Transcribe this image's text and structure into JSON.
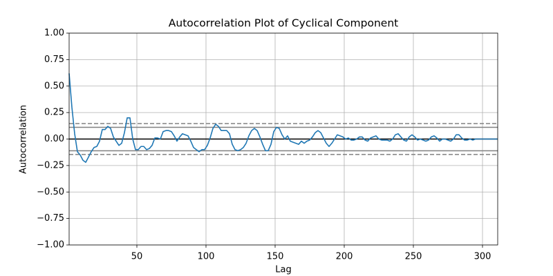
{
  "chart_data": {
    "type": "line",
    "title": "Autocorrelation Plot of Cyclical Component",
    "x_label": "Lag",
    "y_label": "Autocorrelation",
    "x": [
      1,
      3,
      5,
      7,
      9,
      11,
      13,
      15,
      17,
      19,
      21,
      23,
      25,
      27,
      29,
      31,
      33,
      35,
      37,
      39,
      41,
      43,
      45,
      47,
      49,
      51,
      53,
      55,
      57,
      59,
      61,
      63,
      65,
      67,
      69,
      71,
      73,
      75,
      77,
      79,
      81,
      83,
      85,
      87,
      89,
      91,
      93,
      95,
      97,
      99,
      101,
      103,
      105,
      107,
      109,
      111,
      113,
      115,
      117,
      119,
      121,
      123,
      125,
      127,
      129,
      131,
      133,
      135,
      137,
      139,
      141,
      143,
      145,
      147,
      149,
      151,
      153,
      155,
      157,
      159,
      161,
      163,
      165,
      167,
      169,
      171,
      173,
      175,
      177,
      179,
      181,
      183,
      185,
      187,
      189,
      191,
      193,
      195,
      197,
      199,
      201,
      203,
      205,
      207,
      209,
      211,
      213,
      215,
      217,
      219,
      221,
      223,
      225,
      227,
      229,
      231,
      233,
      235,
      237,
      239,
      241,
      243,
      245,
      247,
      249,
      251,
      253,
      255,
      257,
      259,
      261,
      263,
      265,
      267,
      269,
      271,
      273,
      275,
      277,
      279,
      281,
      283,
      285,
      287,
      289,
      291,
      293,
      295,
      297,
      299,
      301,
      303,
      305,
      307,
      309,
      311
    ],
    "series": [
      {
        "name": "Autocorrelation",
        "color": "#1f77b4",
        "values": [
          0.62,
          0.3,
          0.05,
          -0.12,
          -0.15,
          -0.2,
          -0.22,
          -0.17,
          -0.12,
          -0.08,
          -0.07,
          -0.02,
          0.09,
          0.09,
          0.12,
          0.1,
          0.02,
          -0.02,
          -0.06,
          -0.04,
          0.06,
          0.2,
          0.2,
          0.0,
          -0.1,
          -0.1,
          -0.07,
          -0.07,
          -0.1,
          -0.09,
          -0.06,
          0.01,
          0.01,
          0.0,
          0.07,
          0.08,
          0.08,
          0.07,
          0.03,
          -0.02,
          0.02,
          0.05,
          0.04,
          0.03,
          -0.02,
          -0.08,
          -0.1,
          -0.12,
          -0.1,
          -0.1,
          -0.06,
          0.01,
          0.1,
          0.14,
          0.12,
          0.08,
          0.08,
          0.08,
          0.05,
          -0.05,
          -0.1,
          -0.11,
          -0.1,
          -0.08,
          -0.04,
          0.03,
          0.08,
          0.1,
          0.08,
          0.02,
          -0.05,
          -0.11,
          -0.11,
          -0.05,
          0.07,
          0.11,
          0.1,
          0.04,
          0.0,
          0.03,
          -0.02,
          -0.03,
          -0.04,
          -0.05,
          -0.02,
          -0.04,
          -0.02,
          -0.01,
          0.02,
          0.06,
          0.08,
          0.06,
          0.01,
          -0.04,
          -0.07,
          -0.04,
          0.0,
          0.04,
          0.03,
          0.02,
          0.0,
          0.01,
          -0.01,
          -0.01,
          0.0,
          0.02,
          0.02,
          -0.01,
          -0.02,
          0.01,
          0.02,
          0.03,
          0.0,
          -0.01,
          -0.01,
          -0.01,
          -0.02,
          0.0,
          0.04,
          0.05,
          0.02,
          -0.01,
          -0.02,
          0.02,
          0.04,
          0.02,
          -0.01,
          0.0,
          -0.01,
          -0.02,
          -0.01,
          0.02,
          0.03,
          0.01,
          -0.02,
          0.0,
          0.0,
          -0.01,
          -0.02,
          0.0,
          0.04,
          0.04,
          0.01,
          -0.01,
          -0.01,
          0.0,
          -0.01,
          0.0,
          0.0,
          0.0,
          0.0,
          0.0,
          0.0,
          0.0,
          0.0,
          0.0
        ]
      }
    ],
    "reference_lines": [
      {
        "value": 0.146,
        "style": "dashed",
        "color": "#808080"
      },
      {
        "value": 0.111,
        "style": "solid",
        "color": "#808080"
      },
      {
        "value": 0,
        "style": "solid",
        "color": "#000000"
      },
      {
        "value": -0.111,
        "style": "solid",
        "color": "#808080"
      },
      {
        "value": -0.146,
        "style": "dashed",
        "color": "#808080"
      }
    ],
    "xlim": [
      1,
      311
    ],
    "xticks": [
      50,
      100,
      150,
      200,
      250,
      300
    ],
    "ylim": [
      -1,
      1
    ],
    "yticks": [
      {
        "value": -1,
        "label": "−1.00"
      },
      {
        "value": -0.75,
        "label": "−0.75"
      },
      {
        "value": -0.5,
        "label": "−0.50"
      },
      {
        "value": -0.25,
        "label": "−0.25"
      },
      {
        "value": 0,
        "label": "0.00"
      },
      {
        "value": 0.25,
        "label": "0.25"
      },
      {
        "value": 0.5,
        "label": "0.50"
      },
      {
        "value": 0.75,
        "label": "0.75"
      },
      {
        "value": 1,
        "label": "1.00"
      }
    ],
    "grid": true
  }
}
